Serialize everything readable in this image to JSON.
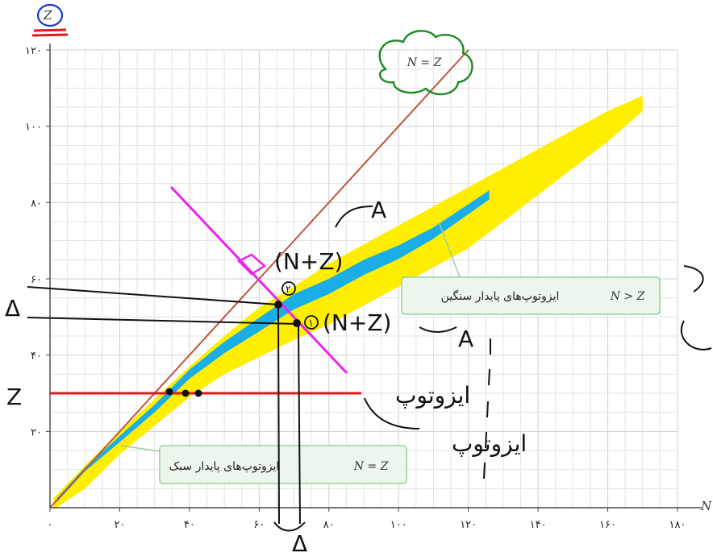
{
  "chart_data": {
    "type": "scatter",
    "title": "",
    "xlabel": "N",
    "ylabel": "Z",
    "xlim": [
      0,
      180
    ],
    "ylim": [
      0,
      120
    ],
    "xticks": [
      "۰",
      "۲۰",
      "۴۰",
      "۶۰",
      "۸۰",
      "۱۰۰",
      "۱۲۰",
      "۱۴۰",
      "۱۶۰",
      "۱۸۰"
    ],
    "yticks": [
      "۲۰",
      "۴۰",
      "۶۰",
      "۸۰",
      "۱۰۰",
      "۱۲۰"
    ],
    "grid": true,
    "colors": {
      "unstable": "#ffee00",
      "stable": "#1aaee8",
      "nz_line": "#c0533f"
    },
    "reference_line": {
      "label": "N = Z",
      "points": [
        [
          0,
          0
        ],
        [
          120,
          120
        ]
      ]
    },
    "bands": [
      {
        "name": "unstable-isotopes",
        "color": "#ffee00",
        "points": [
          [
            1,
            1,
            1.5
          ],
          [
            10,
            8,
            3
          ],
          [
            20,
            17,
            3
          ],
          [
            30,
            25,
            3.5
          ],
          [
            40,
            33,
            4
          ],
          [
            50,
            40,
            5
          ],
          [
            60,
            46,
            6.5
          ],
          [
            70,
            51,
            7
          ],
          [
            80,
            56,
            8
          ],
          [
            90,
            61,
            8
          ],
          [
            100,
            66,
            8
          ],
          [
            110,
            71,
            8
          ],
          [
            120,
            76,
            8
          ],
          [
            130,
            82,
            7
          ],
          [
            140,
            88,
            6
          ],
          [
            150,
            94,
            5
          ],
          [
            160,
            100,
            4
          ],
          [
            170,
            106,
            2
          ]
        ]
      },
      {
        "name": "stable-isotopes",
        "color": "#1aaee8",
        "points": [
          [
            2,
            2,
            0.5
          ],
          [
            10,
            10,
            0.5
          ],
          [
            20,
            18,
            0.8
          ],
          [
            30,
            26,
            1
          ],
          [
            40,
            35,
            1.2
          ],
          [
            50,
            42,
            1.5
          ],
          [
            60,
            48,
            1.8
          ],
          [
            70,
            54,
            2
          ],
          [
            80,
            58,
            2
          ],
          [
            90,
            63,
            2
          ],
          [
            100,
            67,
            1.8
          ],
          [
            110,
            72,
            1.5
          ],
          [
            126,
            82,
            1.2
          ]
        ]
      }
    ],
    "annotations": {
      "light": {
        "condition": "N = Z",
        "text": "ایزوتوپ‌های پایدار سبک"
      },
      "heavy": {
        "condition": "N > Z",
        "text": "ایزوتوپ‌های پایدار سنگین"
      },
      "cloud": "N = Z"
    },
    "handwriting": {
      "z_top": "Z",
      "delta_left": "Δ",
      "z_left": "Z",
      "delta_bottom": "Δ",
      "upper_arrow_a": "A",
      "lower_arrow_a": "A",
      "upper_label": "(N+Z)",
      "lower_label": "(N+Z)",
      "circle_left_digit": "۲",
      "circle_right_digit": "۱",
      "persian_word_1": "ایزوتوپ",
      "persian_word_2": "ایزوتوپ"
    }
  }
}
